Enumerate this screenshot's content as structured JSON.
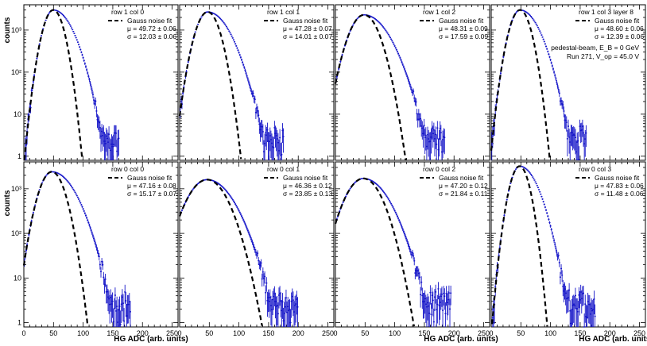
{
  "figure": {
    "y_axis_title": "counts",
    "x_axis_title": "HG ADC (arb. units)",
    "extra_label_line1": "pedestal-beam,  E_B = 0 GeV",
    "extra_label_line2": "Run 271,   V_op = 45.0 V"
  },
  "chart_data": {
    "type": "histogram-grid",
    "rows": 2,
    "cols": 4,
    "xlim": [
      0,
      260
    ],
    "xticks": [
      0,
      50,
      100,
      150,
      200,
      250
    ],
    "yscale": "log",
    "ylim": [
      0.8,
      4000
    ],
    "ytick_labels": [
      "1",
      "10",
      "10²",
      "10³"
    ],
    "ytick_values": [
      1,
      10,
      100,
      1000
    ],
    "legend_entry": "Gauss noise fit",
    "colors": {
      "data": "#1515c8",
      "fit": "#000000"
    },
    "panels": [
      {
        "title": "row 1 col 0",
        "mu": 49.72,
        "mu_err": 0.06,
        "sigma": 12.03,
        "sigma_err": 0.06,
        "peak": 3000,
        "data_sigma_right": 22,
        "max_x": 160,
        "mu_text": "μ = 49.72   ± 0.06",
        "sigma_text": "σ = 12.03   ± 0.06"
      },
      {
        "title": "row 1 col 1",
        "mu": 47.28,
        "mu_err": 0.07,
        "sigma": 14.01,
        "sigma_err": 0.07,
        "peak": 2700,
        "data_sigma_right": 25,
        "max_x": 175,
        "mu_text": "μ = 47.28   ± 0.07",
        "sigma_text": "σ = 14.01   ± 0.07"
      },
      {
        "title": "row 1 col 2",
        "mu": 48.31,
        "mu_err": 0.09,
        "sigma": 17.59,
        "sigma_err": 0.09,
        "peak": 2300,
        "data_sigma_right": 28,
        "max_x": 185,
        "mu_text": "μ = 48.31   ± 0.09",
        "sigma_text": "σ = 17.59   ± 0.09"
      },
      {
        "title": "row 1 col 3 layer 8",
        "mu": 48.6,
        "mu_err": 0.06,
        "sigma": 12.39,
        "sigma_err": 0.06,
        "peak": 3000,
        "data_sigma_right": 22,
        "max_x": 160,
        "mu_text": "μ = 48.60   ± 0.06",
        "sigma_text": "σ = 12.39   ± 0.06"
      },
      {
        "title": "row 0 col 0",
        "mu": 47.16,
        "mu_err": 0.08,
        "sigma": 15.17,
        "sigma_err": 0.07,
        "peak": 2400,
        "data_sigma_right": 27,
        "max_x": 180,
        "mu_text": "μ = 47.16   ± 0.08",
        "sigma_text": "σ = 15.17   ± 0.07"
      },
      {
        "title": "row 0 col 1",
        "mu": 46.36,
        "mu_err": 0.12,
        "sigma": 23.85,
        "sigma_err": 0.13,
        "peak": 1600,
        "data_sigma_right": 30,
        "max_x": 200,
        "mu_text": "μ = 46.36   ± 0.12",
        "sigma_text": "σ = 23.85   ± 0.13"
      },
      {
        "title": "row 0 col 2",
        "mu": 47.2,
        "mu_err": 0.12,
        "sigma": 21.84,
        "sigma_err": 0.11,
        "peak": 1700,
        "data_sigma_right": 29,
        "max_x": 195,
        "mu_text": "μ = 47.20   ± 0.12",
        "sigma_text": "σ = 21.84   ± 0.11"
      },
      {
        "title": "row 0 col 3",
        "mu": 47.83,
        "mu_err": 0.06,
        "sigma": 11.48,
        "sigma_err": 0.06,
        "peak": 3200,
        "data_sigma_right": 21,
        "max_x": 175,
        "mu_text": "μ = 47.83   ± 0.06",
        "sigma_text": "σ = 11.48   ± 0.06"
      }
    ]
  }
}
